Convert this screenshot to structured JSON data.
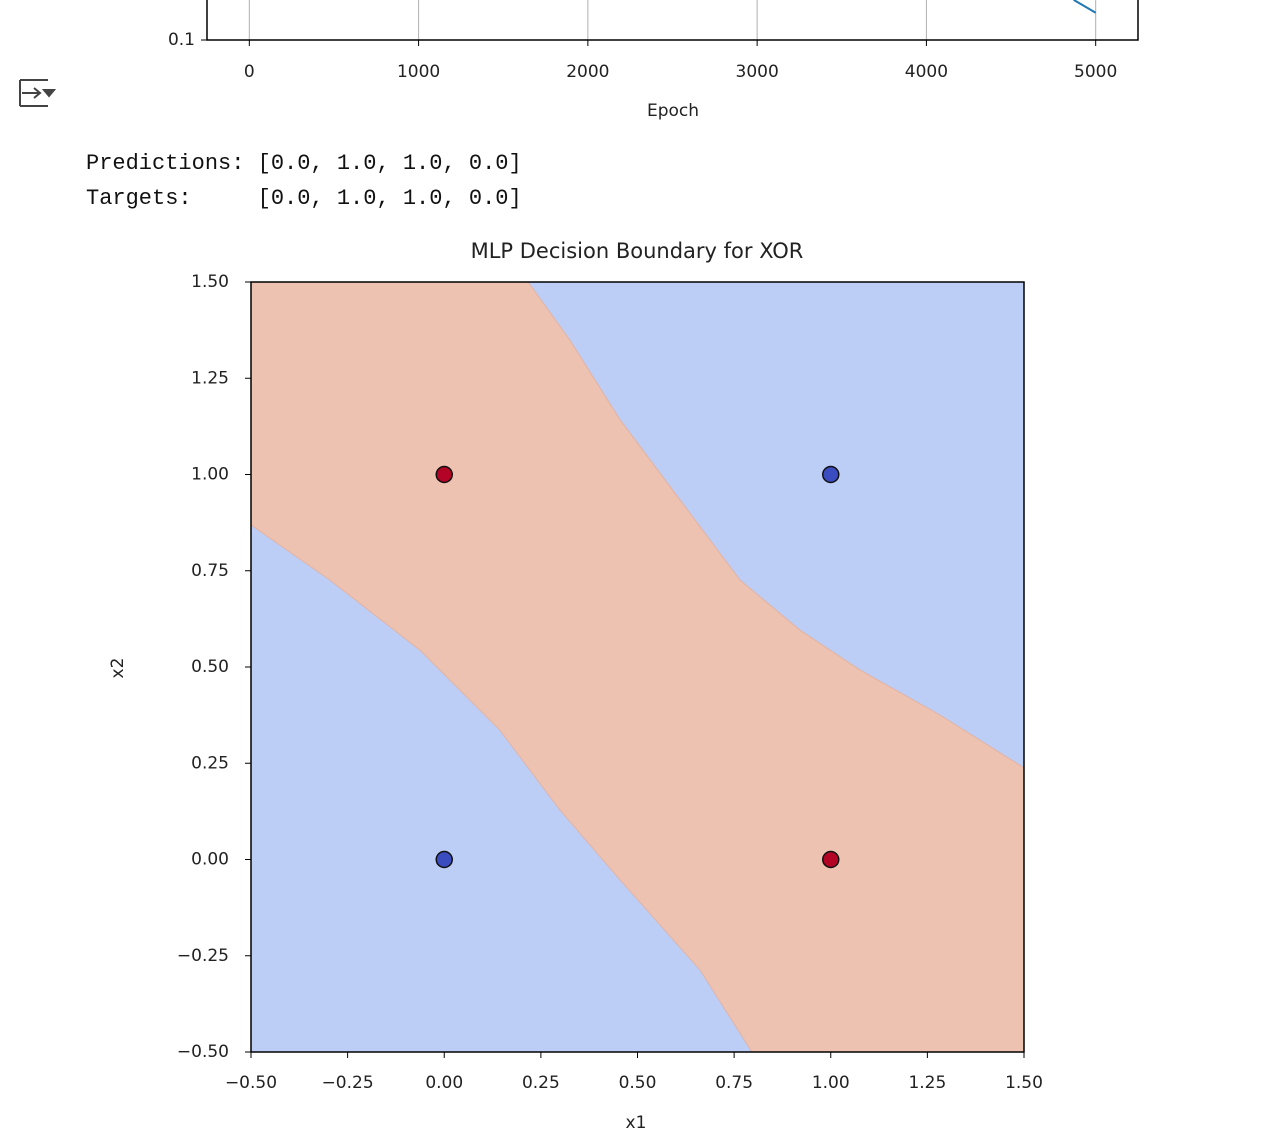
{
  "chart_data": [
    {
      "type": "line",
      "xlabel": "Epoch",
      "xlim": [
        -250,
        5250
      ],
      "xticks": [
        0,
        1000,
        2000,
        3000,
        4000,
        5000
      ],
      "ylim": [
        0.1,
        1
      ],
      "yticks": [
        0.1
      ],
      "log_y": true,
      "grid": true,
      "x": [
        4870,
        5000
      ],
      "series": [
        {
          "color": "#1f77b4",
          "values": [
            0.126,
            0.117
          ]
        }
      ]
    },
    {
      "type": "decision-boundary",
      "title": "MLP Decision Boundary for XOR",
      "xlabel": "x1",
      "ylabel": "x2",
      "xlim": [
        -0.5,
        1.5
      ],
      "ylim": [
        -0.5,
        1.5
      ],
      "xticks": [
        {
          "value": -0.5,
          "label": "−0.50"
        },
        {
          "value": -0.25,
          "label": "−0.25"
        },
        {
          "value": 0,
          "label": "0.00"
        },
        {
          "value": 0.25,
          "label": "0.25"
        },
        {
          "value": 0.5,
          "label": "0.50"
        },
        {
          "value": 0.75,
          "label": "0.75"
        },
        {
          "value": 1,
          "label": "1.00"
        },
        {
          "value": 1.25,
          "label": "1.25"
        },
        {
          "value": 1.5,
          "label": "1.50"
        }
      ],
      "yticks": [
        {
          "value": -0.5,
          "label": "−0.50"
        },
        {
          "value": -0.25,
          "label": "−0.25"
        },
        {
          "value": 0,
          "label": "0.00"
        },
        {
          "value": 0.25,
          "label": "0.25"
        },
        {
          "value": 0.5,
          "label": "0.50"
        },
        {
          "value": 0.75,
          "label": "0.75"
        },
        {
          "value": 1,
          "label": "1.00"
        },
        {
          "value": 1.25,
          "label": "1.25"
        },
        {
          "value": 1.5,
          "label": "1.50"
        }
      ],
      "region_colors": [
        "#bccdf6",
        "#edc2b1"
      ],
      "boundaries": [
        {
          "x": [
            -0.5,
            -0.296,
            -0.063,
            0.144,
            0.299,
            0.455,
            0.662,
            0.796
          ],
          "y": [
            0.869,
            0.726,
            0.544,
            0.336,
            0.129,
            -0.053,
            -0.287,
            -0.5
          ]
        },
        {
          "x": [
            0.217,
            0.325,
            0.455,
            0.61,
            0.765,
            0.92,
            1.076,
            1.283,
            1.5
          ],
          "y": [
            1.5,
            1.349,
            1.142,
            0.934,
            0.726,
            0.596,
            0.492,
            0.375,
            0.238
          ]
        }
      ],
      "x": [
        0,
        0,
        1,
        1
      ],
      "values": [
        0,
        1,
        0,
        1
      ],
      "colors": [
        "#3b4cc0",
        "#b40426",
        "#b40426",
        "#3b4cc0"
      ]
    }
  ],
  "output": {
    "lines": [
      "Predictions: [0.0, 1.0, 1.0, 0.0]",
      "Targets:     [0.0, 1.0, 1.0, 0.0]"
    ]
  }
}
